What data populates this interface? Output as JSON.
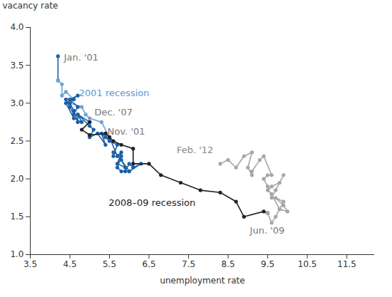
{
  "chart_data": {
    "type": "line",
    "x_label": "unemployment rate",
    "y_label": "vacancy rate",
    "xlim": [
      3.5,
      12.2
    ],
    "ylim": [
      1.0,
      4.0
    ],
    "xticks": [
      3.5,
      4.5,
      5.5,
      6.5,
      7.5,
      8.5,
      9.5,
      10.5,
      11.5
    ],
    "yticks": [
      {
        "value": 1.0,
        "label": "1.0"
      },
      1.5,
      {
        "value": 2.0,
        "label": "2.0"
      },
      2.5,
      {
        "value": 3.0,
        "label": "3.0"
      },
      3.5,
      {
        "value": 4.0,
        "label": "4.0"
      }
    ],
    "grid": false,
    "marker": "circle",
    "line_style": "solid",
    "series": [
      {
        "color": "#1c5fa8",
        "x": [
          4.2,
          4.2
        ],
        "y": [
          3.62,
          3.3
        ]
      },
      {
        "name": "2001 recession",
        "color": "#6fa3d8",
        "x": [
          4.2,
          4.3,
          4.3,
          4.4,
          4.6,
          4.5,
          4.8,
          4.9,
          5.0,
          5.3,
          5.5
        ],
        "y": [
          3.3,
          3.25,
          3.1,
          3.15,
          3.05,
          3.0,
          2.95,
          2.85,
          2.8,
          2.75,
          2.55
        ]
      },
      {
        "color": "#1c5fa8",
        "x": [
          5.5,
          5.7,
          5.8,
          5.7,
          5.9,
          5.8,
          6.0,
          5.9,
          6.0,
          6.1,
          6.3,
          6.0,
          5.8,
          5.7,
          5.8,
          5.6,
          5.6,
          5.7,
          5.5,
          5.4,
          5.3,
          5.4,
          5.2,
          5.0,
          5.1,
          5.0,
          4.7,
          4.7,
          4.6,
          4.5,
          4.6,
          4.4,
          4.5,
          4.6,
          4.7,
          4.5,
          4.7,
          4.4,
          4.6,
          4.8,
          4.7,
          5.0
        ],
        "y": [
          2.55,
          2.3,
          2.35,
          2.2,
          2.15,
          2.25,
          2.1,
          2.1,
          2.2,
          2.15,
          2.2,
          2.1,
          2.1,
          2.15,
          2.3,
          2.35,
          2.3,
          2.45,
          2.5,
          2.55,
          2.6,
          2.45,
          2.6,
          2.55,
          2.65,
          2.7,
          2.85,
          2.75,
          2.9,
          3.0,
          3.05,
          3.05,
          2.95,
          2.85,
          2.95,
          3.05,
          3.1,
          3.0,
          2.8,
          2.75,
          2.85,
          2.75
        ]
      },
      {
        "name": "2008–09 recession",
        "color": "#222222",
        "x": [
          5.0,
          4.8,
          5.0,
          5.4,
          5.5,
          5.6,
          5.8,
          6.1,
          6.1,
          6.5,
          6.8,
          7.3,
          7.8,
          8.3,
          8.7,
          8.9,
          9.4,
          9.5
        ],
        "y": [
          2.75,
          2.65,
          2.58,
          2.6,
          2.55,
          2.5,
          2.45,
          2.4,
          2.2,
          2.2,
          2.05,
          1.95,
          1.85,
          1.82,
          1.7,
          1.5,
          1.57,
          1.55
        ]
      },
      {
        "color": "#a6a6a6",
        "x": [
          9.5,
          9.6,
          9.7,
          9.8,
          9.9,
          9.7,
          9.9,
          10.0,
          9.8,
          9.6,
          9.5,
          9.6,
          9.8,
          9.9,
          9.7,
          9.6,
          9.5,
          9.4,
          9.5,
          9.6,
          9.4,
          9.3,
          9.1,
          9.1,
          9.0,
          9.1,
          8.9,
          8.7,
          8.5,
          8.3
        ],
        "y": [
          1.55,
          1.42,
          1.5,
          1.6,
          1.7,
          1.75,
          1.65,
          1.57,
          1.6,
          1.8,
          1.85,
          1.9,
          1.95,
          2.05,
          1.85,
          1.75,
          1.9,
          2.0,
          2.05,
          2.05,
          2.3,
          2.25,
          2.1,
          2.05,
          2.15,
          2.35,
          2.3,
          2.15,
          2.25,
          2.2
        ]
      }
    ],
    "annotations": [
      {
        "text": "Jan. '01",
        "x": 4.35,
        "y": 3.6,
        "color": "#777777"
      },
      {
        "text": "2001 recession",
        "x": 4.73,
        "y": 3.13,
        "color": "#5b97d3"
      },
      {
        "text": "Dec. '07",
        "x": 5.12,
        "y": 2.88,
        "color": "#777777"
      },
      {
        "text": "Nov. '01",
        "x": 5.45,
        "y": 2.62,
        "color": "#777777"
      },
      {
        "text": "Feb. '12",
        "x": 7.2,
        "y": 2.38,
        "color": "#888888"
      },
      {
        "text": "2008–09 recession",
        "x": 5.48,
        "y": 1.68,
        "color": "#222222"
      },
      {
        "text": "Jun. '09",
        "x": 9.05,
        "y": 1.32,
        "color": "#777777"
      }
    ]
  }
}
